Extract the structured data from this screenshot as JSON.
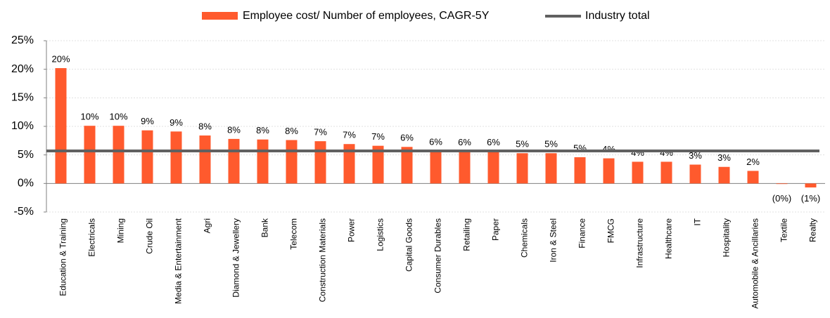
{
  "chart_data": {
    "type": "bar",
    "categories": [
      "Education & Training",
      "Electricals",
      "Mining",
      "Crude Oil",
      "Media & Entertainment",
      "Agri",
      "Diamond  &  Jewellery",
      "Bank",
      "Telecom",
      "Construction Materials",
      "Power",
      "Logistics",
      "Capital Goods",
      "Consumer Durables",
      "Retailing",
      "Paper",
      "Chemicals",
      "Iron & Steel",
      "Finance",
      "FMCG",
      "Infrastructure",
      "Healthcare",
      "IT",
      "Hospitality",
      "Automobile & Ancillaries",
      "Textile",
      "Realty"
    ],
    "series": [
      {
        "name": "Employee cost/ Number of employees, CAGR-5Y",
        "color": "#ff5a2d",
        "values": [
          20.2,
          10.1,
          10.1,
          9.3,
          9.1,
          8.4,
          7.8,
          7.7,
          7.6,
          7.4,
          6.9,
          6.6,
          6.4,
          5.7,
          5.6,
          5.6,
          5.3,
          5.3,
          4.6,
          4.4,
          3.8,
          3.8,
          3.3,
          2.9,
          2.2,
          -0.1,
          -0.7
        ],
        "value_labels": [
          "20%",
          "10%",
          "10%",
          "9%",
          "9%",
          "8%",
          "8%",
          "8%",
          "8%",
          "7%",
          "7%",
          "7%",
          "6%",
          "6%",
          "6%",
          "6%",
          "5%",
          "5%",
          "5%",
          "4%",
          "4%",
          "4%",
          "3%",
          "3%",
          "2%",
          "(0%)",
          "(1%)"
        ]
      }
    ],
    "industry_total": {
      "name": "Industry total",
      "color": "#606060",
      "value": 5.7
    },
    "ylim": [
      -5,
      25
    ],
    "yticks": [
      {
        "value": -5,
        "label": "-5%"
      },
      {
        "value": 0,
        "label": "0%"
      },
      {
        "value": 5,
        "label": "5%"
      },
      {
        "value": 10,
        "label": "10%"
      },
      {
        "value": 15,
        "label": "15%"
      },
      {
        "value": 20,
        "label": "20%"
      },
      {
        "value": 25,
        "label": "25%"
      }
    ],
    "grid": true
  }
}
